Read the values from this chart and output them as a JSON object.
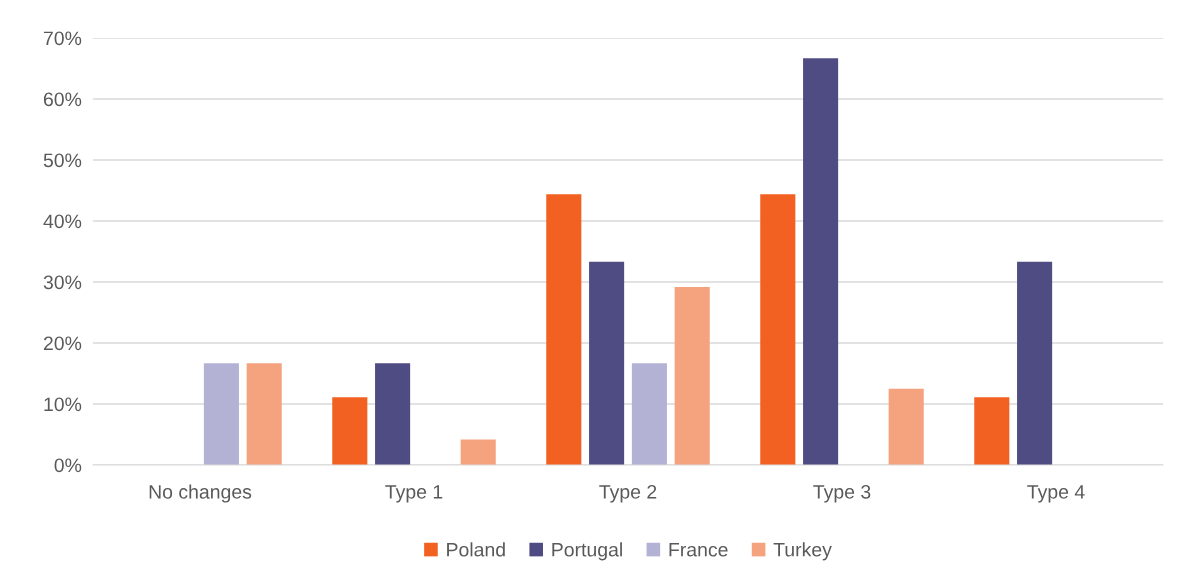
{
  "chart_data": {
    "type": "bar",
    "categories": [
      "No changes",
      "Type 1",
      "Type 2",
      "Type 3",
      "Type 4"
    ],
    "series": [
      {
        "name": "Poland",
        "color": "#f26122",
        "values": [
          0,
          11.1,
          44.4,
          44.4,
          11.1
        ]
      },
      {
        "name": "Portugal",
        "color": "#4f4c83",
        "values": [
          0,
          16.7,
          33.3,
          66.7,
          33.3
        ]
      },
      {
        "name": "France",
        "color": "#b3b2d4",
        "values": [
          16.7,
          0,
          16.7,
          0,
          0
        ]
      },
      {
        "name": "Turkey",
        "color": "#f5a27f",
        "values": [
          16.7,
          4.2,
          29.2,
          12.5,
          0
        ]
      }
    ],
    "ylim": [
      0,
      70
    ],
    "yticks": [
      {
        "value": 0,
        "label": "0%"
      },
      {
        "value": 10,
        "label": "10%"
      },
      {
        "value": 20,
        "label": "20%"
      },
      {
        "value": 30,
        "label": "30%"
      },
      {
        "value": 40,
        "label": "40%"
      },
      {
        "value": 50,
        "label": "50%"
      },
      {
        "value": 60,
        "label": "60%"
      },
      {
        "value": 70,
        "label": "70%"
      }
    ],
    "grid": "y",
    "legend": "bottom"
  }
}
